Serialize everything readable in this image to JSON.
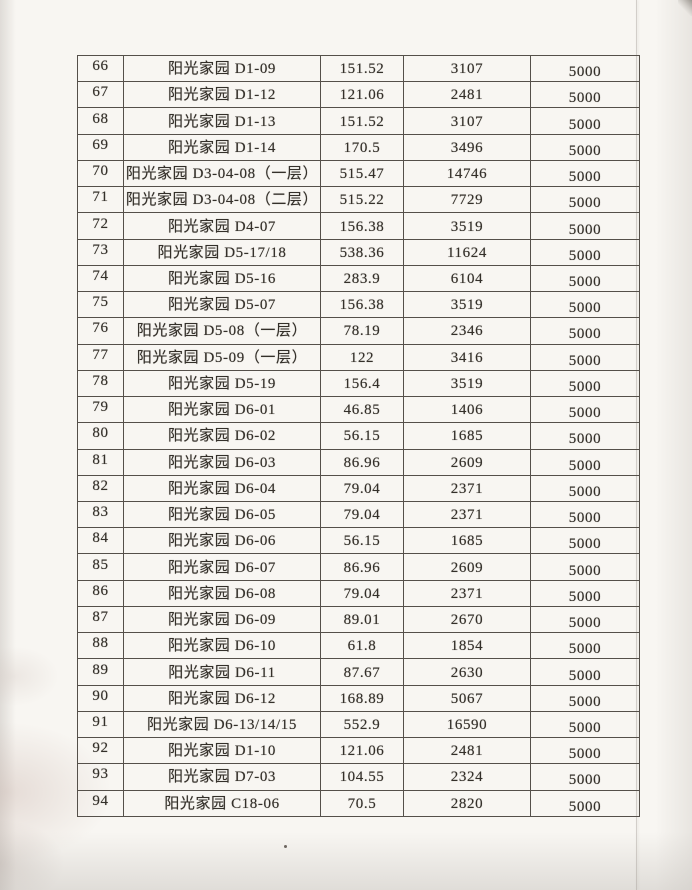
{
  "colors": {
    "ink": "#34302a",
    "border": "#55504a",
    "paper": "#f8f6f2"
  },
  "table": {
    "col_keys": [
      "no",
      "name",
      "area",
      "amount",
      "fee"
    ],
    "rows": [
      {
        "no": "66",
        "name": "阳光家园 D1-09",
        "area": "151.52",
        "amount": "3107",
        "fee": "5000"
      },
      {
        "no": "67",
        "name": "阳光家园 D1-12",
        "area": "121.06",
        "amount": "2481",
        "fee": "5000"
      },
      {
        "no": "68",
        "name": "阳光家园 D1-13",
        "area": "151.52",
        "amount": "3107",
        "fee": "5000"
      },
      {
        "no": "69",
        "name": "阳光家园 D1-14",
        "area": "170.5",
        "amount": "3496",
        "fee": "5000"
      },
      {
        "no": "70",
        "name": "阳光家园 D3-04-08（一层）",
        "area": "515.47",
        "amount": "14746",
        "fee": "5000"
      },
      {
        "no": "71",
        "name": "阳光家园 D3-04-08（二层）",
        "area": "515.22",
        "amount": "7729",
        "fee": "5000"
      },
      {
        "no": "72",
        "name": "阳光家园 D4-07",
        "area": "156.38",
        "amount": "3519",
        "fee": "5000"
      },
      {
        "no": "73",
        "name": "阳光家园 D5-17/18",
        "area": "538.36",
        "amount": "11624",
        "fee": "5000"
      },
      {
        "no": "74",
        "name": "阳光家园 D5-16",
        "area": "283.9",
        "amount": "6104",
        "fee": "5000"
      },
      {
        "no": "75",
        "name": "阳光家园 D5-07",
        "area": "156.38",
        "amount": "3519",
        "fee": "5000"
      },
      {
        "no": "76",
        "name": "阳光家园 D5-08（一层）",
        "area": "78.19",
        "amount": "2346",
        "fee": "5000"
      },
      {
        "no": "77",
        "name": "阳光家园 D5-09（一层）",
        "area": "122",
        "amount": "3416",
        "fee": "5000"
      },
      {
        "no": "78",
        "name": "阳光家园 D5-19",
        "area": "156.4",
        "amount": "3519",
        "fee": "5000"
      },
      {
        "no": "79",
        "name": "阳光家园 D6-01",
        "area": "46.85",
        "amount": "1406",
        "fee": "5000"
      },
      {
        "no": "80",
        "name": "阳光家园 D6-02",
        "area": "56.15",
        "amount": "1685",
        "fee": "5000"
      },
      {
        "no": "81",
        "name": "阳光家园 D6-03",
        "area": "86.96",
        "amount": "2609",
        "fee": "5000"
      },
      {
        "no": "82",
        "name": "阳光家园 D6-04",
        "area": "79.04",
        "amount": "2371",
        "fee": "5000"
      },
      {
        "no": "83",
        "name": "阳光家园 D6-05",
        "area": "79.04",
        "amount": "2371",
        "fee": "5000"
      },
      {
        "no": "84",
        "name": "阳光家园 D6-06",
        "area": "56.15",
        "amount": "1685",
        "fee": "5000"
      },
      {
        "no": "85",
        "name": "阳光家园 D6-07",
        "area": "86.96",
        "amount": "2609",
        "fee": "5000"
      },
      {
        "no": "86",
        "name": "阳光家园 D6-08",
        "area": "79.04",
        "amount": "2371",
        "fee": "5000"
      },
      {
        "no": "87",
        "name": "阳光家园 D6-09",
        "area": "89.01",
        "amount": "2670",
        "fee": "5000"
      },
      {
        "no": "88",
        "name": "阳光家园 D6-10",
        "area": "61.8",
        "amount": "1854",
        "fee": "5000"
      },
      {
        "no": "89",
        "name": "阳光家园 D6-11",
        "area": "87.67",
        "amount": "2630",
        "fee": "5000"
      },
      {
        "no": "90",
        "name": "阳光家园 D6-12",
        "area": "168.89",
        "amount": "5067",
        "fee": "5000"
      },
      {
        "no": "91",
        "name": "阳光家园 D6-13/14/15",
        "area": "552.9",
        "amount": "16590",
        "fee": "5000"
      },
      {
        "no": "92",
        "name": "阳光家园 D1-10",
        "area": "121.06",
        "amount": "2481",
        "fee": "5000"
      },
      {
        "no": "93",
        "name": "阳光家园 D7-03",
        "area": "104.55",
        "amount": "2324",
        "fee": "5000"
      },
      {
        "no": "94",
        "name": "阳光家园 C18-06",
        "area": "70.5",
        "amount": "2820",
        "fee": "5000"
      }
    ]
  }
}
